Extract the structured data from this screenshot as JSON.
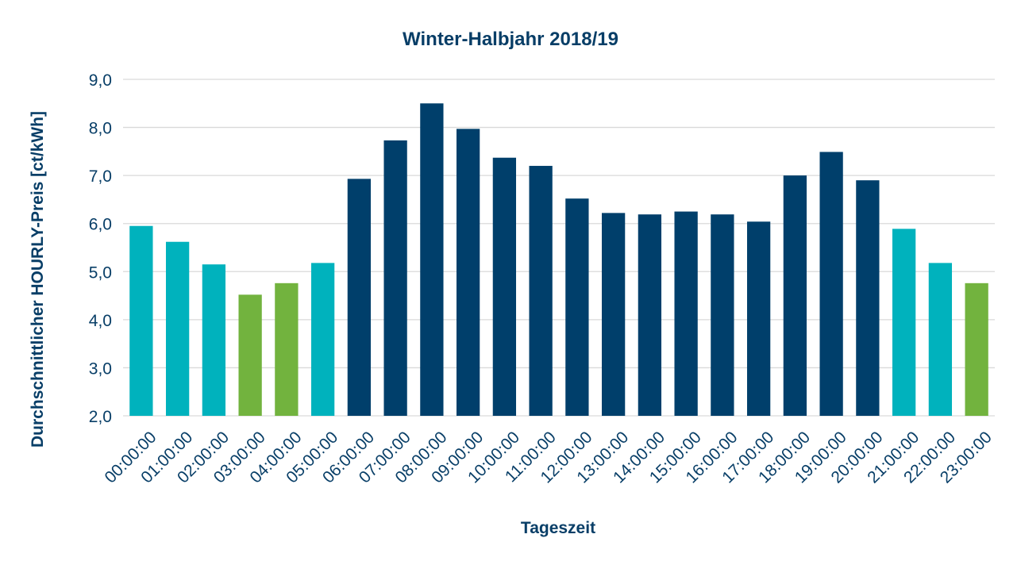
{
  "chart_data": {
    "type": "bar",
    "title": "Winter-Halbjahr 2018/19",
    "xlabel": "Tageszeit",
    "ylabel": "Durchschnittlicher HOURLY-Preis [ct/kWh]",
    "ylim": [
      2.0,
      9.0
    ],
    "yticks": [
      "2,0",
      "3,0",
      "4,0",
      "5,0",
      "6,0",
      "7,0",
      "8,0",
      "9,0"
    ],
    "ytick_values": [
      2,
      3,
      4,
      5,
      6,
      7,
      8,
      9
    ],
    "grid": true,
    "categories": [
      "00:00:00",
      "01:00:00",
      "02:00:00",
      "03:00:00",
      "04:00:00",
      "05:00:00",
      "06:00:00",
      "07:00:00",
      "08:00:00",
      "09:00:00",
      "10:00:00",
      "11:00:00",
      "12:00:00",
      "13:00:00",
      "14:00:00",
      "15:00:00",
      "16:00:00",
      "17:00:00",
      "18:00:00",
      "19:00:00",
      "20:00:00",
      "21:00:00",
      "22:00:00",
      "23:00:00"
    ],
    "values": [
      5.95,
      5.62,
      5.15,
      4.52,
      4.76,
      5.18,
      6.93,
      7.73,
      8.5,
      7.97,
      7.37,
      7.2,
      6.52,
      6.22,
      6.19,
      6.25,
      6.19,
      6.04,
      7.0,
      7.49,
      6.9,
      5.89,
      5.18,
      4.76
    ],
    "bar_colors": [
      "#00b2bd",
      "#00b2bd",
      "#00b2bd",
      "#72b33e",
      "#72b33e",
      "#00b2bd",
      "#003f6b",
      "#003f6b",
      "#003f6b",
      "#003f6b",
      "#003f6b",
      "#003f6b",
      "#003f6b",
      "#003f6b",
      "#003f6b",
      "#003f6b",
      "#003f6b",
      "#003f6b",
      "#003f6b",
      "#003f6b",
      "#003f6b",
      "#00b2bd",
      "#00b2bd",
      "#72b33e"
    ]
  },
  "colors": {
    "text": "#083e67",
    "grid": "#d9d9d9",
    "teal": "#00b2bd",
    "green": "#72b33e",
    "navy": "#003f6b"
  }
}
